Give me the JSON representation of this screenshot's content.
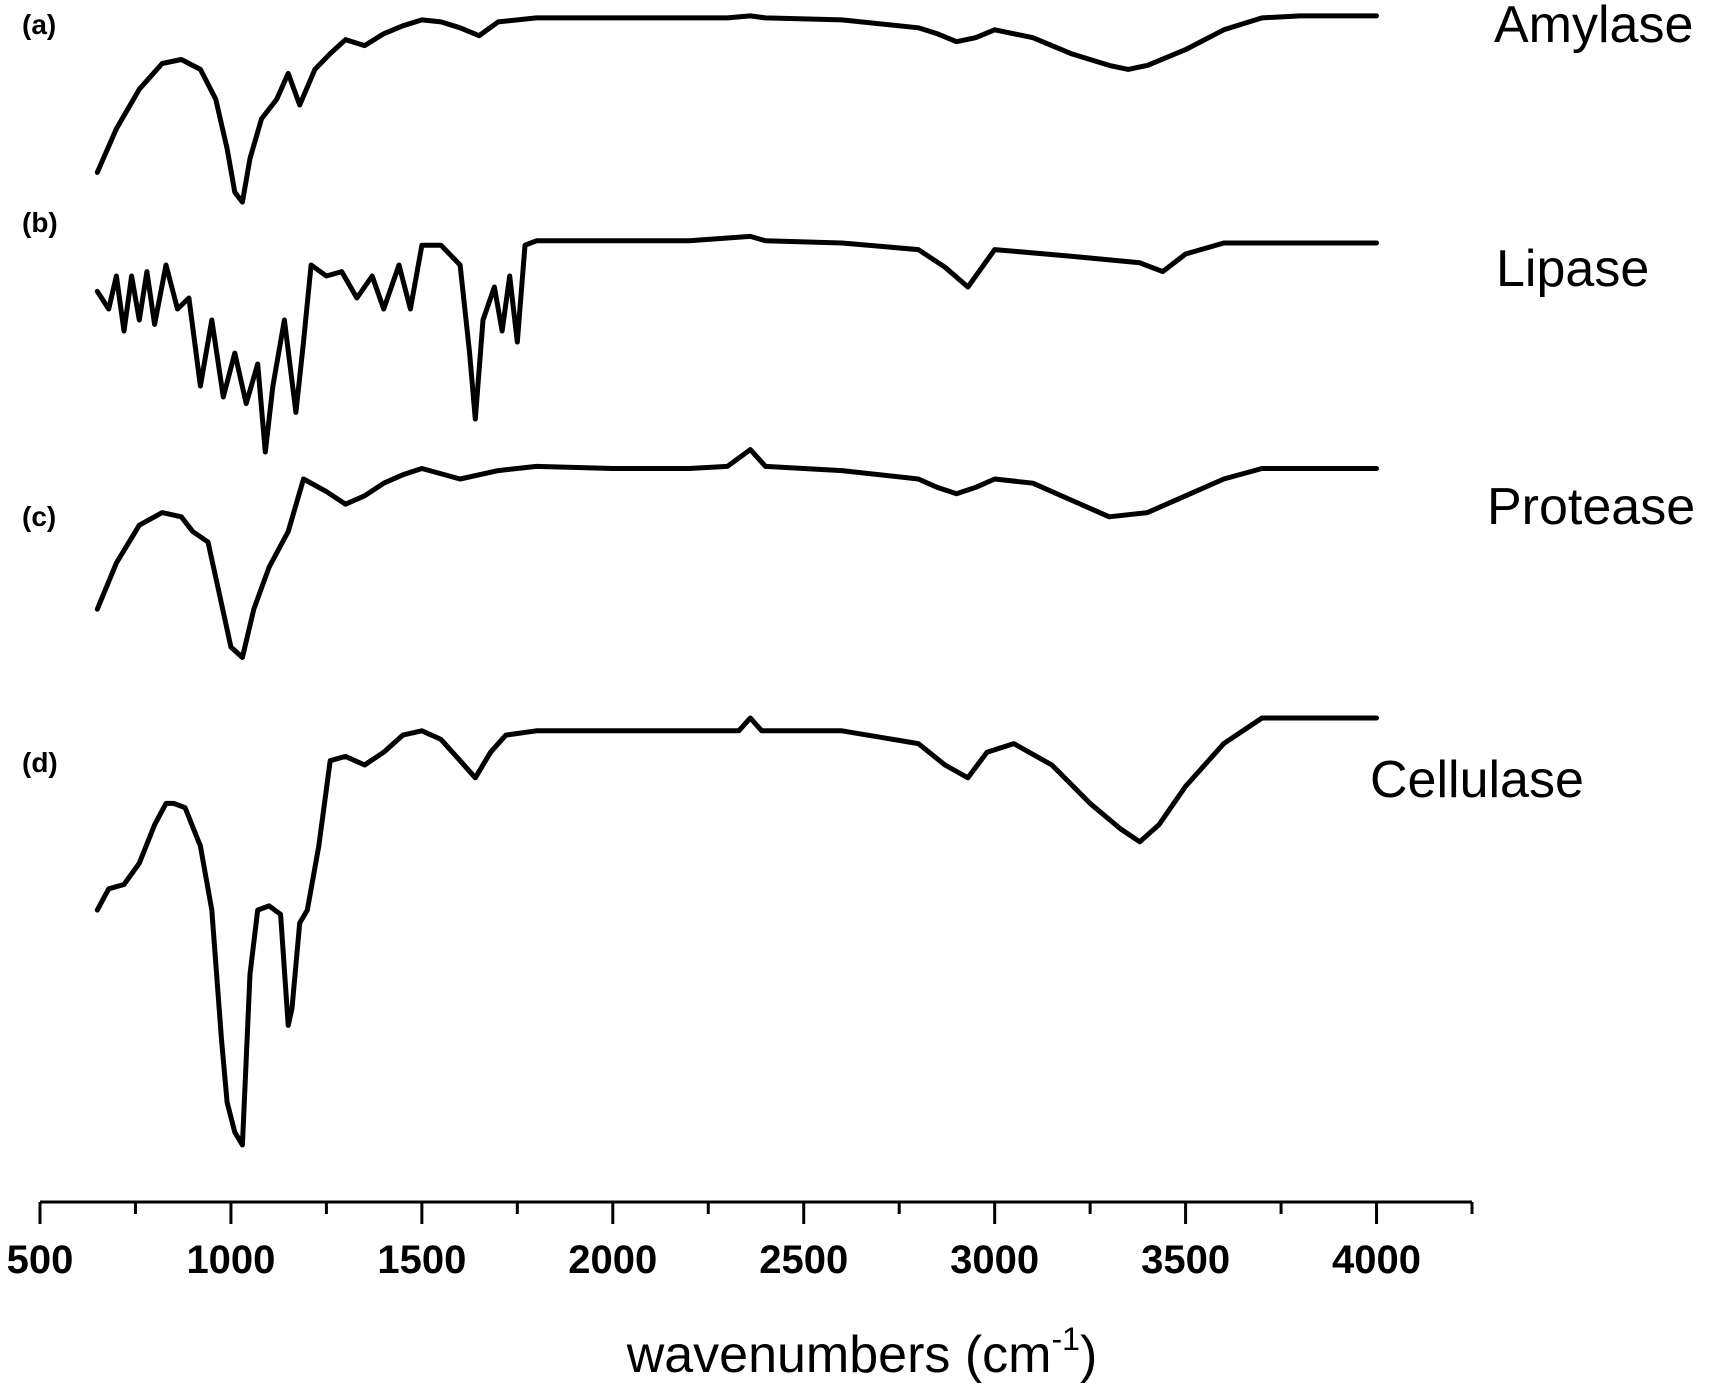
{
  "chart_data": {
    "type": "line",
    "xlabel": "wavenumbers (cm",
    "xlabel_sup": "-1",
    "xlabel_close": ")",
    "xlim": [
      500,
      4250
    ],
    "x_ticks": [
      500,
      1000,
      1500,
      2000,
      2500,
      3000,
      3500,
      4000
    ],
    "y_axis": "none",
    "grid": false,
    "series": [
      {
        "panel": "(a)",
        "name": "Amylase",
        "x": [
          650,
          700,
          760,
          820,
          870,
          920,
          960,
          990,
          1010,
          1030,
          1050,
          1080,
          1120,
          1150,
          1180,
          1220,
          1260,
          1300,
          1350,
          1400,
          1450,
          1500,
          1550,
          1600,
          1650,
          1700,
          1800,
          2000,
          2200,
          2300,
          2360,
          2400,
          2600,
          2800,
          2850,
          2900,
          2950,
          3000,
          3100,
          3200,
          3300,
          3350,
          3400,
          3500,
          3600,
          3700,
          3800,
          4000
        ],
        "y": [
          0.82,
          0.6,
          0.4,
          0.27,
          0.25,
          0.3,
          0.45,
          0.7,
          0.92,
          0.97,
          0.75,
          0.55,
          0.45,
          0.32,
          0.48,
          0.3,
          0.22,
          0.15,
          0.18,
          0.12,
          0.08,
          0.05,
          0.06,
          0.09,
          0.13,
          0.06,
          0.04,
          0.04,
          0.04,
          0.04,
          0.03,
          0.04,
          0.05,
          0.09,
          0.12,
          0.16,
          0.14,
          0.1,
          0.14,
          0.22,
          0.28,
          0.3,
          0.28,
          0.2,
          0.1,
          0.04,
          0.03,
          0.03
        ]
      },
      {
        "panel": "(b)",
        "name": "Lipase",
        "x": [
          650,
          680,
          700,
          720,
          740,
          760,
          780,
          800,
          830,
          860,
          890,
          920,
          950,
          980,
          1010,
          1040,
          1070,
          1090,
          1110,
          1140,
          1170,
          1190,
          1210,
          1250,
          1290,
          1330,
          1370,
          1400,
          1440,
          1470,
          1500,
          1550,
          1600,
          1625,
          1640,
          1660,
          1690,
          1710,
          1730,
          1750,
          1770,
          1800,
          2000,
          2200,
          2360,
          2400,
          2600,
          2800,
          2870,
          2930,
          3000,
          3200,
          3380,
          3440,
          3500,
          3600,
          4000
        ],
        "y": [
          0.27,
          0.35,
          0.2,
          0.45,
          0.2,
          0.4,
          0.18,
          0.42,
          0.15,
          0.35,
          0.3,
          0.7,
          0.4,
          0.75,
          0.55,
          0.78,
          0.6,
          1.0,
          0.7,
          0.4,
          0.82,
          0.5,
          0.15,
          0.2,
          0.18,
          0.3,
          0.2,
          0.35,
          0.15,
          0.35,
          0.06,
          0.06,
          0.15,
          0.55,
          0.85,
          0.4,
          0.25,
          0.45,
          0.2,
          0.5,
          0.06,
          0.04,
          0.04,
          0.04,
          0.02,
          0.04,
          0.05,
          0.08,
          0.16,
          0.25,
          0.08,
          0.11,
          0.14,
          0.18,
          0.1,
          0.05,
          0.05
        ]
      },
      {
        "panel": "(c)",
        "name": "Protease",
        "x": [
          650,
          700,
          760,
          820,
          870,
          900,
          940,
          970,
          1000,
          1030,
          1060,
          1100,
          1150,
          1190,
          1250,
          1300,
          1350,
          1400,
          1450,
          1500,
          1600,
          1700,
          1800,
          2000,
          2200,
          2300,
          2360,
          2400,
          2600,
          2800,
          2850,
          2900,
          2950,
          3000,
          3100,
          3200,
          3300,
          3400,
          3500,
          3600,
          3700,
          3800,
          4000
        ],
        "y": [
          0.72,
          0.5,
          0.32,
          0.26,
          0.28,
          0.35,
          0.4,
          0.65,
          0.9,
          0.95,
          0.72,
          0.52,
          0.35,
          0.1,
          0.16,
          0.22,
          0.18,
          0.12,
          0.08,
          0.05,
          0.1,
          0.06,
          0.04,
          0.05,
          0.05,
          0.04,
          -0.04,
          0.04,
          0.06,
          0.1,
          0.14,
          0.17,
          0.14,
          0.1,
          0.12,
          0.2,
          0.28,
          0.26,
          0.18,
          0.1,
          0.05,
          0.05,
          0.05
        ]
      },
      {
        "panel": "(d)",
        "name": "Cellulase",
        "x": [
          650,
          680,
          720,
          760,
          800,
          830,
          850,
          880,
          920,
          950,
          975,
          990,
          1010,
          1030,
          1050,
          1070,
          1100,
          1130,
          1150,
          1160,
          1180,
          1200,
          1230,
          1260,
          1300,
          1350,
          1400,
          1450,
          1500,
          1550,
          1600,
          1640,
          1680,
          1720,
          1800,
          2000,
          2200,
          2330,
          2360,
          2390,
          2600,
          2800,
          2870,
          2930,
          2980,
          3050,
          3150,
          3250,
          3330,
          3380,
          3430,
          3500,
          3600,
          3700,
          3800,
          4000
        ],
        "y": [
          0.45,
          0.4,
          0.39,
          0.34,
          0.25,
          0.2,
          0.2,
          0.21,
          0.3,
          0.45,
          0.75,
          0.9,
          0.97,
          1.0,
          0.6,
          0.45,
          0.44,
          0.46,
          0.72,
          0.68,
          0.48,
          0.45,
          0.3,
          0.1,
          0.09,
          0.11,
          0.08,
          0.04,
          0.03,
          0.05,
          0.1,
          0.14,
          0.08,
          0.04,
          0.03,
          0.03,
          0.03,
          0.03,
          0.0,
          0.03,
          0.03,
          0.06,
          0.11,
          0.14,
          0.08,
          0.06,
          0.11,
          0.2,
          0.26,
          0.29,
          0.25,
          0.16,
          0.06,
          0.0,
          0.0,
          0.0
        ]
      }
    ]
  }
}
